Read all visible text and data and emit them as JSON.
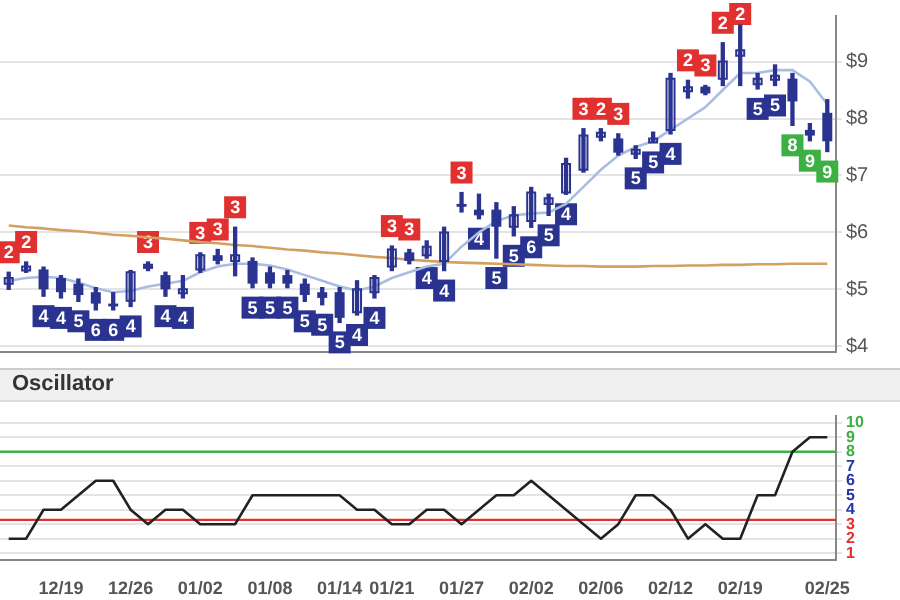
{
  "chart_data": [
    {
      "type": "candlestick",
      "color": "#2a3390",
      "ohlc": [
        [
          5.1,
          5.3,
          5.0,
          5.2
        ],
        [
          5.35,
          5.48,
          5.3,
          5.4
        ],
        [
          5.35,
          5.39,
          4.88,
          5.0
        ],
        [
          5.2,
          5.24,
          4.85,
          4.95
        ],
        [
          5.1,
          5.18,
          4.79,
          4.9
        ],
        [
          4.95,
          5.03,
          4.64,
          4.75
        ],
        [
          4.75,
          4.94,
          4.64,
          4.7
        ],
        [
          4.8,
          5.33,
          4.7,
          5.3
        ],
        [
          5.45,
          5.48,
          5.33,
          5.36
        ],
        [
          5.25,
          5.3,
          4.88,
          5.0
        ],
        [
          4.95,
          5.24,
          4.85,
          5.0
        ],
        [
          5.35,
          5.64,
          5.3,
          5.6
        ],
        [
          5.6,
          5.7,
          5.45,
          5.5
        ],
        [
          5.5,
          6.09,
          5.24,
          5.6
        ],
        [
          5.5,
          5.55,
          5.03,
          5.1
        ],
        [
          5.3,
          5.39,
          5.03,
          5.1
        ],
        [
          5.25,
          5.33,
          5.03,
          5.1
        ],
        [
          5.1,
          5.18,
          4.79,
          4.9
        ],
        [
          4.95,
          5.03,
          4.73,
          4.85
        ],
        [
          4.95,
          5.03,
          4.42,
          4.5
        ],
        [
          4.6,
          5.15,
          4.55,
          5.0
        ],
        [
          4.95,
          5.24,
          4.85,
          5.2
        ],
        [
          5.4,
          5.76,
          5.33,
          5.7
        ],
        [
          5.65,
          5.7,
          5.45,
          5.5
        ],
        [
          5.6,
          5.85,
          5.55,
          5.75
        ],
        [
          5.5,
          6.09,
          5.33,
          6.0
        ],
        [
          6.5,
          6.7,
          6.36,
          6.45
        ],
        [
          6.4,
          6.67,
          6.24,
          6.3
        ],
        [
          6.4,
          6.52,
          5.55,
          6.1
        ],
        [
          6.1,
          6.45,
          5.94,
          6.3
        ],
        [
          6.2,
          6.79,
          6.09,
          6.7
        ],
        [
          6.5,
          6.67,
          6.3,
          6.6
        ],
        [
          6.7,
          7.3,
          6.67,
          7.2
        ],
        [
          7.1,
          7.82,
          7.06,
          7.7
        ],
        [
          7.7,
          7.82,
          7.61,
          7.75
        ],
        [
          7.65,
          7.73,
          7.36,
          7.4
        ],
        [
          7.4,
          7.52,
          7.3,
          7.45
        ],
        [
          7.6,
          7.76,
          7.58,
          7.65
        ],
        [
          7.8,
          8.79,
          7.73,
          8.7
        ],
        [
          8.5,
          8.67,
          8.36,
          8.55
        ],
        [
          8.56,
          8.58,
          8.42,
          8.44
        ],
        [
          8.7,
          9.33,
          8.58,
          9.0
        ],
        [
          9.1,
          9.64,
          8.58,
          9.2
        ],
        [
          8.6,
          8.79,
          8.52,
          8.7
        ],
        [
          8.7,
          8.94,
          8.58,
          8.75
        ],
        [
          8.7,
          8.79,
          7.88,
          8.3
        ],
        [
          7.8,
          7.91,
          7.61,
          7.7
        ],
        [
          8.1,
          8.33,
          7.42,
          7.6
        ]
      ],
      "value_labels": [
        "2",
        "2",
        "4",
        "4",
        "5",
        "6",
        "6",
        "4",
        "3",
        "4",
        "4",
        "3",
        "3",
        "3",
        "5",
        "5",
        "5",
        "5",
        "5",
        "5",
        "4",
        "4",
        "3",
        "3",
        "4",
        "4",
        "3",
        "4",
        "5",
        "5",
        "6",
        "5",
        "4",
        "3",
        "2",
        "3",
        "5",
        "5",
        "4",
        "2",
        "3",
        "2",
        "2",
        "5",
        "5",
        "8",
        "9",
        "9"
      ],
      "series": [
        {
          "type": "line",
          "color": "#a9bde0",
          "values": [
            5.15,
            5.2,
            5.22,
            5.2,
            5.12,
            5.02,
            4.95,
            4.97,
            5.05,
            5.1,
            5.15,
            5.3,
            5.4,
            5.45,
            5.45,
            5.42,
            5.35,
            5.25,
            5.15,
            5.05,
            4.98,
            5.05,
            5.2,
            5.3,
            5.4,
            5.45,
            5.75,
            6.0,
            6.2,
            6.3,
            6.33,
            6.35,
            6.5,
            6.8,
            7.1,
            7.35,
            7.5,
            7.6,
            7.8,
            8.0,
            8.2,
            8.5,
            8.8,
            8.8,
            8.85,
            8.85,
            8.65,
            8.25
          ]
        },
        {
          "type": "line",
          "color": "#d4a062",
          "values": [
            6.12,
            6.09,
            6.07,
            6.04,
            6.02,
            5.99,
            5.96,
            5.94,
            5.91,
            5.89,
            5.86,
            5.83,
            5.81,
            5.78,
            5.76,
            5.73,
            5.7,
            5.68,
            5.65,
            5.63,
            5.6,
            5.57,
            5.55,
            5.52,
            5.5,
            5.48,
            5.47,
            5.46,
            5.45,
            5.44,
            5.43,
            5.42,
            5.41,
            5.41,
            5.4,
            5.4,
            5.4,
            5.41,
            5.41,
            5.42,
            5.42,
            5.43,
            5.43,
            5.44,
            5.44,
            5.45,
            5.45,
            5.45
          ]
        }
      ],
      "ylim": [
        3.9,
        9.8
      ],
      "yticks": [
        {
          "value": 4,
          "label": "$4"
        },
        {
          "value": 5,
          "label": "$5"
        },
        {
          "value": 6,
          "label": "$6"
        },
        {
          "value": 7,
          "label": "$7"
        },
        {
          "value": 8,
          "label": "$8"
        },
        {
          "value": 9,
          "label": "$9"
        }
      ],
      "grid": true,
      "tick_labels": "y"
    },
    {
      "type": "line",
      "title": "Oscillator",
      "color": "#222222",
      "categories": [
        null,
        null,
        null,
        "12/19",
        null,
        null,
        null,
        "12/26",
        null,
        null,
        null,
        "01/02",
        null,
        null,
        null,
        "01/08",
        null,
        null,
        null,
        "01/14",
        null,
        null,
        "01/21",
        null,
        null,
        null,
        "01/27",
        null,
        null,
        null,
        "02/02",
        null,
        null,
        null,
        "02/06",
        null,
        null,
        null,
        "02/12",
        null,
        null,
        null,
        "02/19",
        null,
        null,
        null,
        null,
        "02/25"
      ],
      "values": [
        2,
        2,
        4,
        4,
        5,
        6,
        6,
        4,
        3,
        4,
        4,
        3,
        3,
        3,
        5,
        5,
        5,
        5,
        5,
        5,
        4,
        4,
        3,
        3,
        4,
        4,
        3,
        4,
        5,
        5,
        6,
        5,
        4,
        3,
        2,
        3,
        5,
        5,
        4,
        2,
        3,
        2,
        2,
        5,
        5,
        8,
        9,
        9
      ],
      "ylim": [
        0.5,
        10.5
      ],
      "yticks": [
        1,
        2,
        3,
        4,
        5,
        6,
        7,
        8,
        9,
        10
      ],
      "ref_lines": [
        {
          "axis": "y",
          "value": 3.3,
          "color": "#e03030"
        },
        {
          "axis": "y",
          "value": 8,
          "color": "#3cb043"
        }
      ],
      "grid": "y"
    }
  ]
}
